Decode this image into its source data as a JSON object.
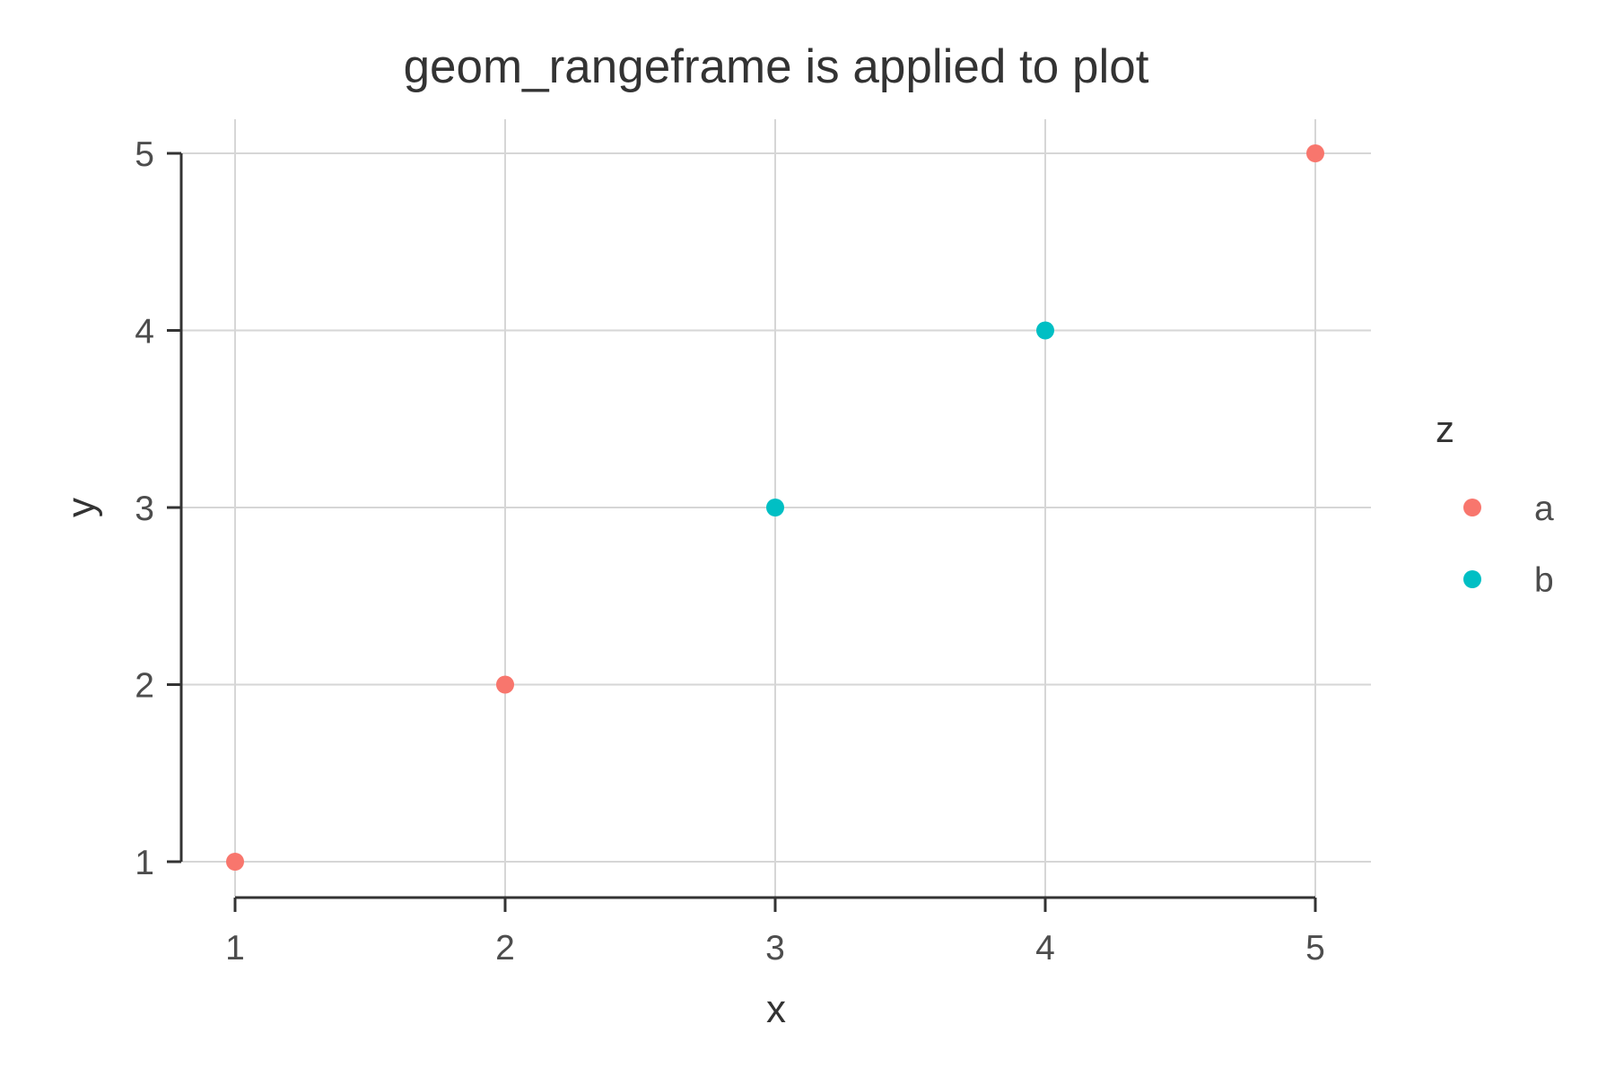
{
  "chart_data": {
    "type": "scatter",
    "title": "geom_rangeframe is applied to plot",
    "xlabel": "x",
    "ylabel": "y",
    "xlim": [
      0.8,
      5.2
    ],
    "ylim": [
      0.8,
      5.2
    ],
    "x_ticks": [
      1,
      2,
      3,
      4,
      5
    ],
    "y_ticks": [
      1,
      2,
      3,
      4,
      5
    ],
    "grid": true,
    "legend": {
      "title": "z",
      "position": "right",
      "entries": [
        {
          "label": "a",
          "color": "#F8766D"
        },
        {
          "label": "b",
          "color": "#00BFC4"
        }
      ]
    },
    "points": [
      {
        "x": 1,
        "y": 1,
        "group": "a"
      },
      {
        "x": 2,
        "y": 2,
        "group": "a"
      },
      {
        "x": 3,
        "y": 3,
        "group": "b"
      },
      {
        "x": 4,
        "y": 4,
        "group": "b"
      },
      {
        "x": 5,
        "y": 5,
        "group": "a"
      }
    ]
  }
}
